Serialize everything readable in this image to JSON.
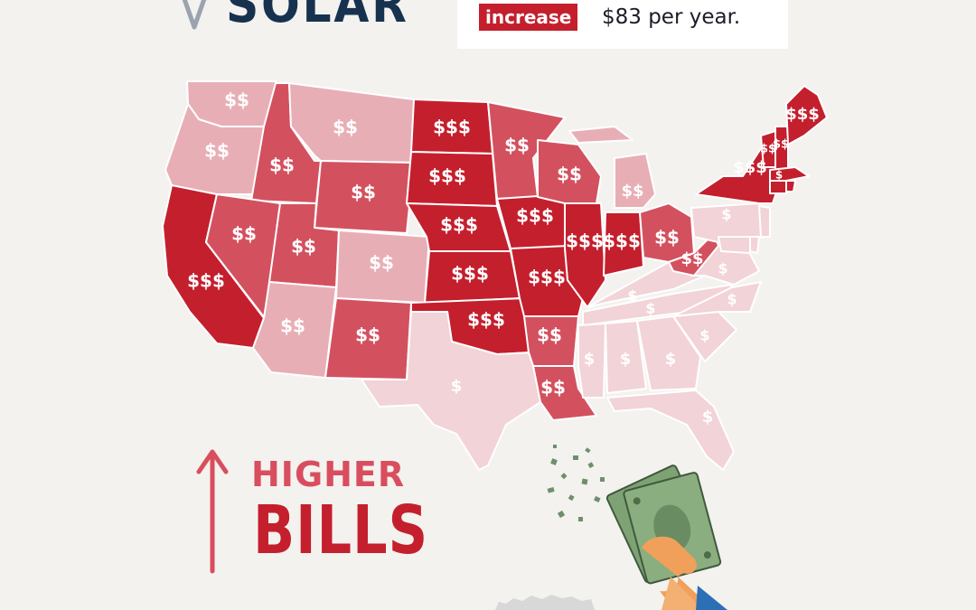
{
  "header": {
    "title": "SOLAR",
    "badge": "increase",
    "text": "$83 per year."
  },
  "footer": {
    "higher": "HIGHER",
    "bills": "BILLS"
  },
  "colors": {
    "tier1": "#f2d3d7",
    "tier2": "#e8aeb6",
    "tier3": "#d3515f",
    "tier4": "#c41f2d",
    "navy": "#17324f"
  },
  "states": [
    {
      "id": "WA",
      "label": "$$",
      "tier": 2
    },
    {
      "id": "OR",
      "label": "$$",
      "tier": 2
    },
    {
      "id": "ID",
      "label": "$$",
      "tier": 3
    },
    {
      "id": "MT",
      "label": "$$",
      "tier": 2
    },
    {
      "id": "WY",
      "label": "$$",
      "tier": 3
    },
    {
      "id": "CA",
      "label": "$$$",
      "tier": 4
    },
    {
      "id": "NV",
      "label": "$$",
      "tier": 3
    },
    {
      "id": "UT",
      "label": "$$",
      "tier": 3
    },
    {
      "id": "AZ",
      "label": "$$",
      "tier": 2
    },
    {
      "id": "CO",
      "label": "$$",
      "tier": 2
    },
    {
      "id": "NM",
      "label": "$$",
      "tier": 3
    },
    {
      "id": "ND",
      "label": "$$$",
      "tier": 4
    },
    {
      "id": "SD",
      "label": "$$$",
      "tier": 4
    },
    {
      "id": "NE",
      "label": "$$$",
      "tier": 4
    },
    {
      "id": "KS",
      "label": "$$$",
      "tier": 4
    },
    {
      "id": "OK",
      "label": "$$$",
      "tier": 4
    },
    {
      "id": "TX",
      "label": "$",
      "tier": 1
    },
    {
      "id": "MN",
      "label": "$$",
      "tier": 3
    },
    {
      "id": "IA",
      "label": "$$$",
      "tier": 4
    },
    {
      "id": "MO",
      "label": "$$$",
      "tier": 4
    },
    {
      "id": "AR",
      "label": "$$",
      "tier": 3
    },
    {
      "id": "LA",
      "label": "$$",
      "tier": 3
    },
    {
      "id": "WI",
      "label": "$$",
      "tier": 3
    },
    {
      "id": "IL",
      "label": "$$$",
      "tier": 4
    },
    {
      "id": "MI",
      "label": "$$",
      "tier": 2
    },
    {
      "id": "IN",
      "label": "$$$",
      "tier": 4
    },
    {
      "id": "OH",
      "label": "$$",
      "tier": 3
    },
    {
      "id": "KY",
      "label": "$",
      "tier": 1
    },
    {
      "id": "TN",
      "label": "$",
      "tier": 1
    },
    {
      "id": "MS",
      "label": "$",
      "tier": 1
    },
    {
      "id": "AL",
      "label": "$",
      "tier": 1
    },
    {
      "id": "GA",
      "label": "$",
      "tier": 1
    },
    {
      "id": "FL",
      "label": "$",
      "tier": 1
    },
    {
      "id": "SC",
      "label": "$",
      "tier": 1
    },
    {
      "id": "NC",
      "label": "$",
      "tier": 1
    },
    {
      "id": "VA",
      "label": "$",
      "tier": 1
    },
    {
      "id": "WV",
      "label": "$$",
      "tier": 3
    },
    {
      "id": "PA",
      "label": "$",
      "tier": 1
    },
    {
      "id": "NY",
      "label": "$$$",
      "tier": 4
    },
    {
      "id": "VT",
      "label": "$$",
      "tier": 4
    },
    {
      "id": "NH",
      "label": "$$",
      "tier": 4
    },
    {
      "id": "ME",
      "label": "$$$",
      "tier": 4
    },
    {
      "id": "MA",
      "label": "$",
      "tier": 4
    },
    {
      "id": "CT",
      "label": "",
      "tier": 4
    },
    {
      "id": "RI",
      "label": "",
      "tier": 4
    },
    {
      "id": "NJ",
      "label": "",
      "tier": 1
    },
    {
      "id": "DE",
      "label": "",
      "tier": 1
    },
    {
      "id": "MD",
      "label": "",
      "tier": 1
    }
  ]
}
